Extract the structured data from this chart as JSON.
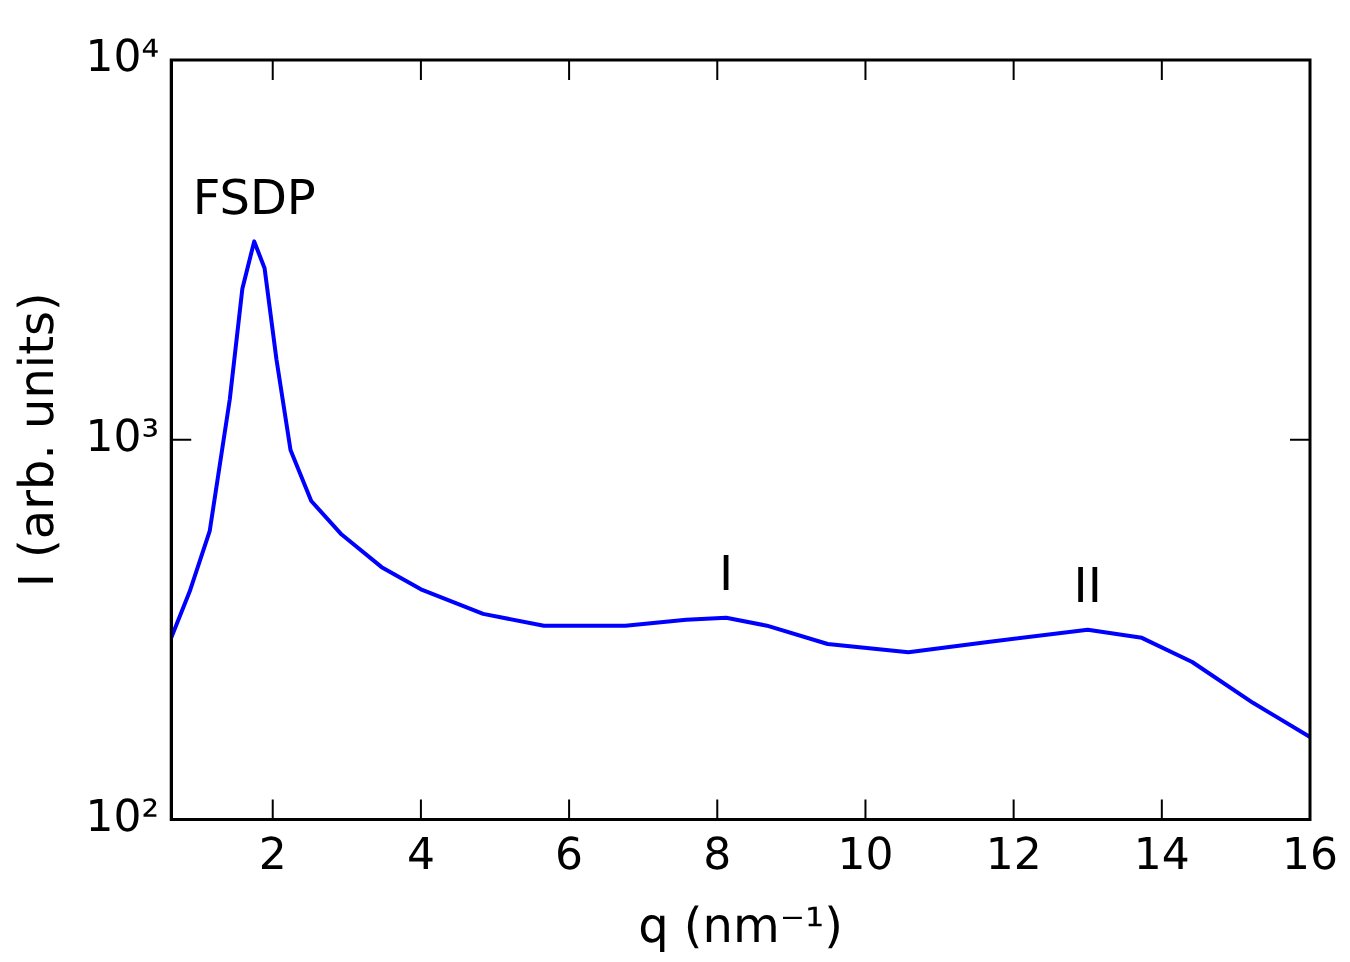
{
  "chart_data": {
    "type": "line",
    "xlabel": "q (nm⁻¹)",
    "ylabel": "I (arb. units)",
    "log": "y",
    "xlim": [
      0.63,
      16
    ],
    "xticks": [
      2,
      4,
      6,
      8,
      10,
      12,
      14,
      16
    ],
    "ylim": [
      100,
      10000
    ],
    "yticks": [
      {
        "value": 100,
        "label": "10²"
      },
      {
        "value": 1000,
        "label": "10³"
      },
      {
        "value": 10000,
        "label": "10⁴"
      }
    ],
    "grid": false,
    "legend": false,
    "marker": "none",
    "line_style": "solid",
    "series": [
      {
        "color": "#0000ff",
        "x": [
          0.63,
          0.88,
          1.15,
          1.42,
          1.59,
          1.75,
          1.89,
          2.05,
          2.24,
          2.52,
          2.93,
          3.47,
          4.0,
          4.84,
          5.66,
          6.76,
          7.58,
          8.12,
          8.67,
          9.49,
          10.58,
          11.68,
          13.0,
          13.73,
          14.41,
          15.23,
          16.0
        ],
        "values": [
          301,
          399,
          576,
          1277,
          2500,
          3330,
          2830,
          1630,
          940,
          690,
          563,
          462,
          404,
          348,
          324,
          324,
          336,
          340,
          324,
          290,
          276,
          294,
          316,
          301,
          260,
          203,
          165
        ]
      }
    ],
    "annotations": [
      {
        "text": "FSDP",
        "x": 1.75,
        "y": 3330
      },
      {
        "text": "I",
        "x": 8.12,
        "y": 340
      },
      {
        "text": "II",
        "x": 13.0,
        "y": 316
      }
    ]
  }
}
